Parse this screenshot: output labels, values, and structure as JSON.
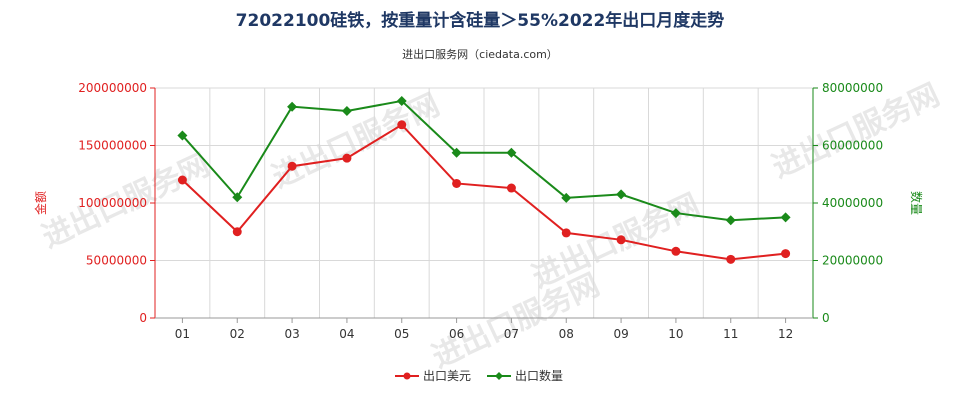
{
  "chart_data": {
    "type": "line",
    "title": "72022100硅铁，按重量计含硅量＞55%2022年出口月度走势",
    "subtitle": "进出口服务网（ciedata.com）",
    "watermark": "进出口服务网",
    "categories": [
      "01",
      "02",
      "03",
      "04",
      "05",
      "06",
      "07",
      "08",
      "09",
      "10",
      "11",
      "12"
    ],
    "y_left": {
      "label": "金额",
      "min": 0,
      "max": 200000000,
      "ticks": [
        "0",
        "50000000",
        "100000000",
        "150000000",
        "200000000"
      ],
      "color": "#e02020"
    },
    "y_right": {
      "label": "数量",
      "min": 0,
      "max": 80000000,
      "ticks": [
        "0",
        "20000000",
        "40000000",
        "60000000",
        "80000000"
      ],
      "color": "#1a8a1a"
    },
    "grid": true,
    "legend_position": "bottom",
    "series": [
      {
        "name": "出口美元",
        "axis": "left",
        "color": "#e02020",
        "marker": "circle",
        "values": [
          120000000,
          75000000,
          132000000,
          139000000,
          168000000,
          117000000,
          113000000,
          74000000,
          68000000,
          58000000,
          51000000,
          56000000
        ]
      },
      {
        "name": "出口数量",
        "axis": "right",
        "color": "#1a8a1a",
        "marker": "diamond",
        "values": [
          63500000,
          42000000,
          73500000,
          72000000,
          75500000,
          57500000,
          57500000,
          41800000,
          43000000,
          36500000,
          34000000,
          35000000
        ]
      }
    ]
  }
}
